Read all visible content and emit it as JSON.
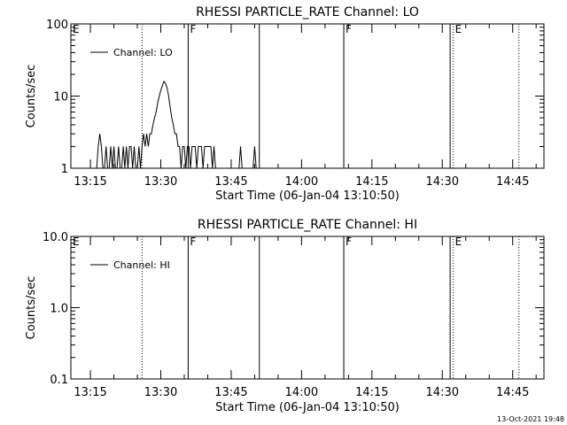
{
  "footer_timestamp": "13-Oct-2021 19:48",
  "colors": {
    "background": "#ffffff",
    "foreground": "#000000"
  },
  "chart_data": [
    {
      "type": "line",
      "title": "RHESSI PARTICLE_RATE Channel: LO",
      "xlabel": "Start Time (06-Jan-04 13:10:50)",
      "ylabel": "Counts/sec",
      "y_scale": "log",
      "ylim": [
        1,
        100
      ],
      "xlim": [
        "13:10:50",
        "14:51:40"
      ],
      "x_tick_labels": [
        "13:15",
        "13:30",
        "13:45",
        "14:00",
        "14:15",
        "14:30",
        "14:45"
      ],
      "y_tick_labels": [
        "1",
        "10",
        "100"
      ],
      "legend": {
        "position": "top-left",
        "entries": [
          "Channel: LO"
        ]
      },
      "grid": false,
      "markers": [
        {
          "time": "13:10:50",
          "style": "solid",
          "label": "E"
        },
        {
          "time": "13:26:00",
          "style": "dotted",
          "label": ""
        },
        {
          "time": "13:35:50",
          "style": "solid",
          "label": "F"
        },
        {
          "time": "13:51:00",
          "style": "solid",
          "label": ""
        },
        {
          "time": "14:09:00",
          "style": "solid",
          "label": "F"
        },
        {
          "time": "14:31:40",
          "style": "solid",
          "label": ""
        },
        {
          "time": "14:32:20",
          "style": "dotted",
          "label": "E"
        },
        {
          "time": "14:46:20",
          "style": "dotted",
          "label": ""
        }
      ],
      "series": [
        {
          "name": "Channel: LO",
          "points": [
            [
              "13:16:20",
              1
            ],
            [
              "13:16:40",
              2
            ],
            [
              "13:17:00",
              3
            ],
            [
              "13:17:20",
              2
            ],
            [
              "13:17:40",
              1
            ],
            [
              "13:18:00",
              1
            ],
            [
              "13:18:20",
              2
            ],
            [
              "13:18:40",
              1
            ],
            [
              "13:19:00",
              1
            ],
            [
              "13:19:20",
              2
            ],
            [
              "13:19:40",
              1
            ],
            [
              "13:20:00",
              2
            ],
            [
              "13:20:20",
              1
            ],
            [
              "13:20:40",
              1
            ],
            [
              "13:21:00",
              2
            ],
            [
              "13:21:20",
              1
            ],
            [
              "13:21:40",
              1
            ],
            [
              "13:22:00",
              2
            ],
            [
              "13:22:20",
              1
            ],
            [
              "13:22:40",
              2
            ],
            [
              "13:23:00",
              1
            ],
            [
              "13:23:20",
              2
            ],
            [
              "13:23:40",
              2
            ],
            [
              "13:24:00",
              1
            ],
            [
              "13:24:20",
              2
            ],
            [
              "13:24:40",
              1
            ],
            [
              "13:25:00",
              1
            ],
            [
              "13:25:20",
              2
            ],
            [
              "13:25:40",
              1
            ],
            [
              "13:26:00",
              2
            ],
            [
              "13:26:20",
              3
            ],
            [
              "13:26:40",
              2
            ],
            [
              "13:27:00",
              3
            ],
            [
              "13:27:20",
              2
            ],
            [
              "13:27:40",
              3
            ],
            [
              "13:28:00",
              3
            ],
            [
              "13:28:20",
              4
            ],
            [
              "13:28:40",
              5
            ],
            [
              "13:29:00",
              6
            ],
            [
              "13:29:20",
              8
            ],
            [
              "13:29:40",
              10
            ],
            [
              "13:30:00",
              12
            ],
            [
              "13:30:20",
              14
            ],
            [
              "13:30:40",
              16
            ],
            [
              "13:31:00",
              15
            ],
            [
              "13:31:20",
              13
            ],
            [
              "13:31:40",
              10
            ],
            [
              "13:32:00",
              7
            ],
            [
              "13:32:20",
              5
            ],
            [
              "13:32:40",
              4
            ],
            [
              "13:33:00",
              3
            ],
            [
              "13:33:20",
              3
            ],
            [
              "13:33:40",
              2
            ],
            [
              "13:34:00",
              2
            ],
            [
              "13:34:20",
              1
            ],
            [
              "13:34:40",
              2
            ],
            [
              "13:35:00",
              2
            ],
            [
              "13:35:20",
              1
            ],
            [
              "13:35:40",
              2
            ],
            [
              "13:36:00",
              2
            ],
            [
              "13:36:20",
              1
            ],
            [
              "13:36:40",
              2
            ],
            [
              "13:37:00",
              2
            ],
            [
              "13:37:20",
              2
            ],
            [
              "13:37:40",
              1
            ],
            [
              "13:38:00",
              2
            ],
            [
              "13:38:20",
              2
            ],
            [
              "13:38:40",
              2
            ],
            [
              "13:39:00",
              1
            ],
            [
              "13:39:20",
              2
            ],
            [
              "13:39:40",
              2
            ],
            [
              "13:40:00",
              2
            ],
            [
              "13:40:20",
              2
            ],
            [
              "13:40:40",
              2
            ],
            [
              "13:41:00",
              1
            ],
            [
              "13:41:20",
              2
            ],
            [
              "13:41:40",
              1
            ],
            [
              "13:42:00",
              1
            ],
            [
              "13:42:20",
              1
            ],
            [
              "13:42:40",
              1
            ],
            [
              "13:43:00",
              1
            ],
            [
              "13:46:40",
              1
            ],
            [
              "13:47:00",
              2
            ],
            [
              "13:47:20",
              1
            ],
            [
              "13:49:40",
              1
            ],
            [
              "13:50:00",
              2
            ],
            [
              "13:50:20",
              1
            ]
          ]
        }
      ]
    },
    {
      "type": "line",
      "title": "RHESSI PARTICLE_RATE Channel: HI",
      "xlabel": "Start Time (06-Jan-04 13:10:50)",
      "ylabel": "Counts/sec",
      "y_scale": "log",
      "ylim": [
        0.1,
        10
      ],
      "xlim": [
        "13:10:50",
        "14:51:40"
      ],
      "x_tick_labels": [
        "13:15",
        "13:30",
        "13:45",
        "14:00",
        "14:15",
        "14:30",
        "14:45"
      ],
      "y_tick_labels": [
        "0.1",
        "1.0",
        "10.0"
      ],
      "legend": {
        "position": "top-left",
        "entries": [
          "Channel: HI"
        ]
      },
      "grid": false,
      "markers": [
        {
          "time": "13:10:50",
          "style": "solid",
          "label": "E"
        },
        {
          "time": "13:26:00",
          "style": "dotted",
          "label": ""
        },
        {
          "time": "13:35:50",
          "style": "solid",
          "label": "F"
        },
        {
          "time": "13:51:00",
          "style": "solid",
          "label": ""
        },
        {
          "time": "14:09:00",
          "style": "solid",
          "label": "F"
        },
        {
          "time": "14:31:40",
          "style": "solid",
          "label": ""
        },
        {
          "time": "14:32:20",
          "style": "dotted",
          "label": "E"
        },
        {
          "time": "14:46:20",
          "style": "dotted",
          "label": ""
        }
      ],
      "series": [
        {
          "name": "Channel: HI",
          "points": []
        }
      ]
    }
  ]
}
